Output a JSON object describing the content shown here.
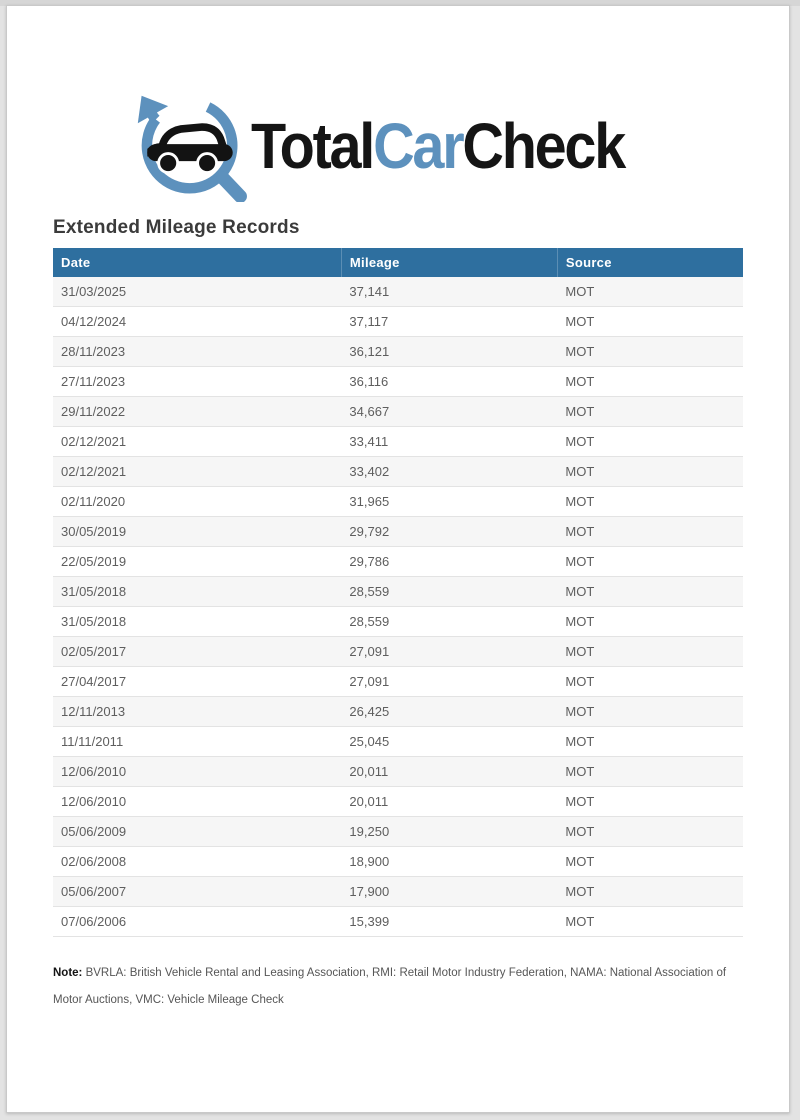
{
  "logo": {
    "part_total": "Total",
    "part_car": "Car",
    "part_check": "Check",
    "accent_color": "#5d91bd",
    "dark_color": "#151515",
    "icon": "car-magnifier-arrow-icon"
  },
  "title": "Extended Mileage Records",
  "table": {
    "header_bg": "#2e6f9f",
    "headers": [
      "Date",
      "Mileage",
      "Source"
    ],
    "rows": [
      {
        "date": "31/03/2025",
        "mileage": "37,141",
        "source": "MOT"
      },
      {
        "date": "04/12/2024",
        "mileage": "37,117",
        "source": "MOT"
      },
      {
        "date": "28/11/2023",
        "mileage": "36,121",
        "source": "MOT"
      },
      {
        "date": "27/11/2023",
        "mileage": "36,116",
        "source": "MOT"
      },
      {
        "date": "29/11/2022",
        "mileage": "34,667",
        "source": "MOT"
      },
      {
        "date": "02/12/2021",
        "mileage": "33,411",
        "source": "MOT"
      },
      {
        "date": "02/12/2021",
        "mileage": "33,402",
        "source": "MOT"
      },
      {
        "date": "02/11/2020",
        "mileage": "31,965",
        "source": "MOT"
      },
      {
        "date": "30/05/2019",
        "mileage": "29,792",
        "source": "MOT"
      },
      {
        "date": "22/05/2019",
        "mileage": "29,786",
        "source": "MOT"
      },
      {
        "date": "31/05/2018",
        "mileage": "28,559",
        "source": "MOT"
      },
      {
        "date": "31/05/2018",
        "mileage": "28,559",
        "source": "MOT"
      },
      {
        "date": "02/05/2017",
        "mileage": "27,091",
        "source": "MOT"
      },
      {
        "date": "27/04/2017",
        "mileage": "27,091",
        "source": "MOT"
      },
      {
        "date": "12/11/2013",
        "mileage": "26,425",
        "source": "MOT"
      },
      {
        "date": "11/11/2011",
        "mileage": "25,045",
        "source": "MOT"
      },
      {
        "date": "12/06/2010",
        "mileage": "20,011",
        "source": "MOT"
      },
      {
        "date": "12/06/2010",
        "mileage": "20,011",
        "source": "MOT"
      },
      {
        "date": "05/06/2009",
        "mileage": "19,250",
        "source": "MOT"
      },
      {
        "date": "02/06/2008",
        "mileage": "18,900",
        "source": "MOT"
      },
      {
        "date": "05/06/2007",
        "mileage": "17,900",
        "source": "MOT"
      },
      {
        "date": "07/06/2006",
        "mileage": "15,399",
        "source": "MOT"
      }
    ]
  },
  "note": {
    "label": "Note:",
    "text": " BVRLA: British Vehicle Rental and Leasing Association, RMI: Retail Motor Industry Federation, NAMA: National Association of Motor Auctions, VMC: Vehicle Mileage Check"
  }
}
